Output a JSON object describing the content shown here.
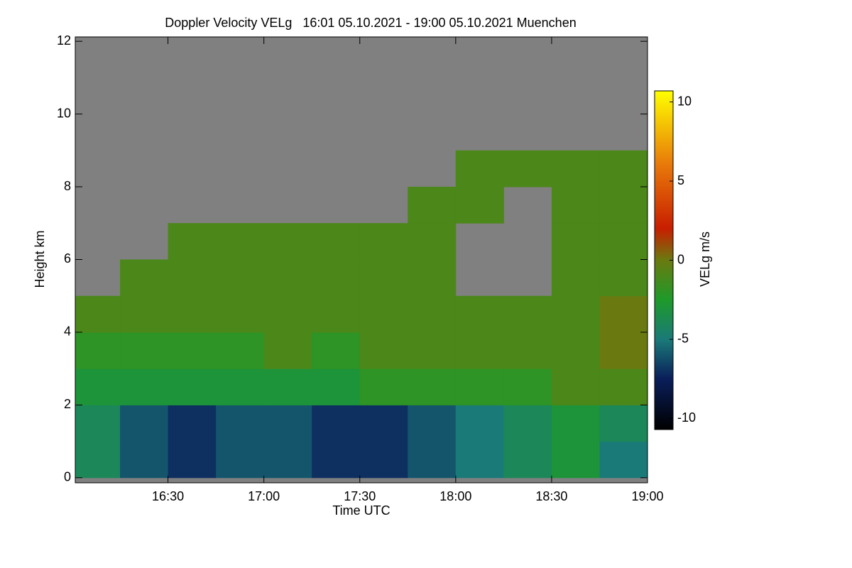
{
  "chart_data": {
    "type": "heatmap",
    "title": "Doppler Velocity VELg   16:01 05.10.2021 - 19:00 05.10.2021 Muenchen",
    "x_label": "Time UTC",
    "y_label": "Height km",
    "colorbar_label": "VELg m/s",
    "x_edges": [
      "16:01",
      "16:15",
      "16:30",
      "16:45",
      "17:00",
      "17:15",
      "17:30",
      "17:45",
      "18:00",
      "18:15",
      "18:30",
      "18:45",
      "19:00"
    ],
    "y_edges": [
      0,
      1,
      2,
      3,
      4,
      5,
      6,
      7,
      8,
      9,
      10,
      11,
      12
    ],
    "values": [
      [
        -4,
        -6,
        -7,
        -6,
        -6,
        -7,
        -7,
        -6,
        -5,
        -4,
        -3,
        -5
      ],
      [
        -4,
        -6,
        -7,
        -6,
        -6,
        -7,
        -7,
        -6,
        -5,
        -4,
        -3,
        -4
      ],
      [
        -3,
        -3,
        -3,
        -3,
        -3,
        -3,
        -2,
        -2,
        -2,
        -2,
        -1,
        -1
      ],
      [
        -2,
        -2,
        -2,
        -2,
        -1,
        -2,
        -1,
        -1,
        -1,
        -1,
        -1,
        0
      ],
      [
        -1,
        -1,
        -1,
        -1,
        -1,
        -1,
        -1,
        -1,
        -1,
        -1,
        -1,
        0
      ],
      [
        null,
        -1,
        -1,
        -1,
        -1,
        -1,
        -1,
        -1,
        null,
        null,
        -1,
        -1
      ],
      [
        null,
        null,
        -1,
        -1,
        -1,
        -1,
        -1,
        -1,
        null,
        null,
        -1,
        -1
      ],
      [
        null,
        null,
        null,
        null,
        null,
        null,
        null,
        -1,
        -1,
        null,
        -1,
        -1
      ],
      [
        null,
        null,
        null,
        null,
        null,
        null,
        null,
        null,
        -1,
        -1,
        -1,
        -1
      ],
      [
        null,
        null,
        null,
        null,
        null,
        null,
        null,
        null,
        null,
        null,
        null,
        null
      ],
      [
        null,
        null,
        null,
        null,
        null,
        null,
        null,
        null,
        null,
        null,
        null,
        null
      ],
      [
        null,
        null,
        null,
        null,
        null,
        null,
        null,
        null,
        null,
        null,
        null,
        null
      ]
    ],
    "xlim": [
      "16:01",
      "19:00"
    ],
    "xticks": [
      "16:30",
      "17:00",
      "17:30",
      "18:00",
      "18:30",
      "19:00"
    ],
    "ylim": [
      -0.14,
      12.12
    ],
    "yticks": [
      0,
      2,
      4,
      6,
      8,
      10,
      12
    ],
    "clim": [
      -10.7,
      10.7
    ],
    "cticks": [
      -10,
      -5,
      0,
      5,
      10
    ],
    "no_data_color": "#808080",
    "colormap": [
      {
        "value": -10.7,
        "color": "#000000"
      },
      {
        "value": -7.5,
        "color": "#0a1e5a"
      },
      {
        "value": -5,
        "color": "#1a7a78"
      },
      {
        "value": -2.5,
        "color": "#1e9a2a"
      },
      {
        "value": 0,
        "color": "#6a7a10"
      },
      {
        "value": 2,
        "color": "#c81e00"
      },
      {
        "value": 6,
        "color": "#e8780a"
      },
      {
        "value": 10.7,
        "color": "#ffff00"
      }
    ]
  }
}
